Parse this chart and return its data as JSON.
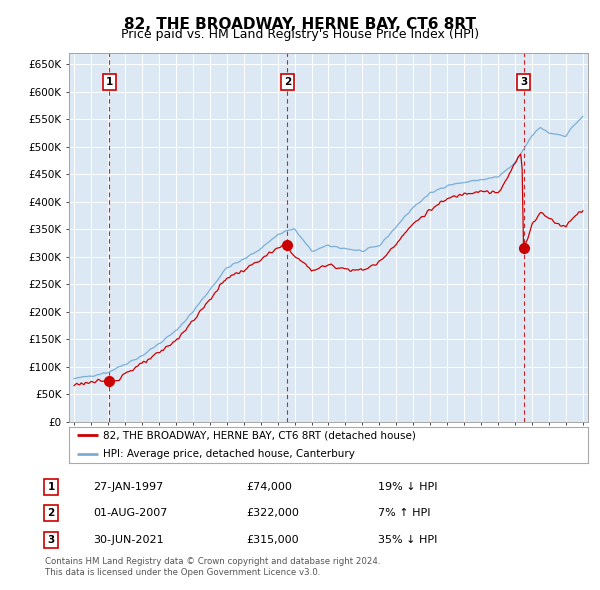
{
  "title": "82, THE BROADWAY, HERNE BAY, CT6 8RT",
  "subtitle": "Price paid vs. HM Land Registry's House Price Index (HPI)",
  "title_fontsize": 11,
  "subtitle_fontsize": 9,
  "bg_color": "#dce9f5",
  "fig_bg": "#ffffff",
  "red_color": "#cc0000",
  "blue_color": "#7aaed6",
  "ylim": [
    0,
    670000
  ],
  "xlim_left": 1994.7,
  "xlim_right": 2025.3,
  "yticks": [
    0,
    50000,
    100000,
    150000,
    200000,
    250000,
    300000,
    350000,
    400000,
    450000,
    500000,
    550000,
    600000,
    650000
  ],
  "ytick_labels": [
    "£0",
    "£50K",
    "£100K",
    "£150K",
    "£200K",
    "£250K",
    "£300K",
    "£350K",
    "£400K",
    "£450K",
    "£500K",
    "£550K",
    "£600K",
    "£650K"
  ],
  "xticks": [
    1995,
    1996,
    1997,
    1998,
    1999,
    2000,
    2001,
    2002,
    2003,
    2004,
    2005,
    2006,
    2007,
    2008,
    2009,
    2010,
    2011,
    2012,
    2013,
    2014,
    2015,
    2016,
    2017,
    2018,
    2019,
    2020,
    2021,
    2022,
    2023,
    2024,
    2025
  ],
  "transactions": [
    {
      "num": 1,
      "year": 1997.07,
      "price": 74000,
      "date": "27-JAN-1997",
      "price_str": "£74,000",
      "pct": "19%",
      "dir": "↓"
    },
    {
      "num": 2,
      "year": 2007.58,
      "price": 322000,
      "date": "01-AUG-2007",
      "price_str": "£322,000",
      "pct": "7%",
      "dir": "↑"
    },
    {
      "num": 3,
      "year": 2021.5,
      "price": 315000,
      "date": "30-JUN-2021",
      "price_str": "£315,000",
      "pct": "35%",
      "dir": "↓"
    }
  ],
  "legend_line1": "82, THE BROADWAY, HERNE BAY, CT6 8RT (detached house)",
  "legend_line2": "HPI: Average price, detached house, Canterbury",
  "footer1": "Contains HM Land Registry data © Crown copyright and database right 2024.",
  "footer2": "This data is licensed under the Open Government Licence v3.0."
}
